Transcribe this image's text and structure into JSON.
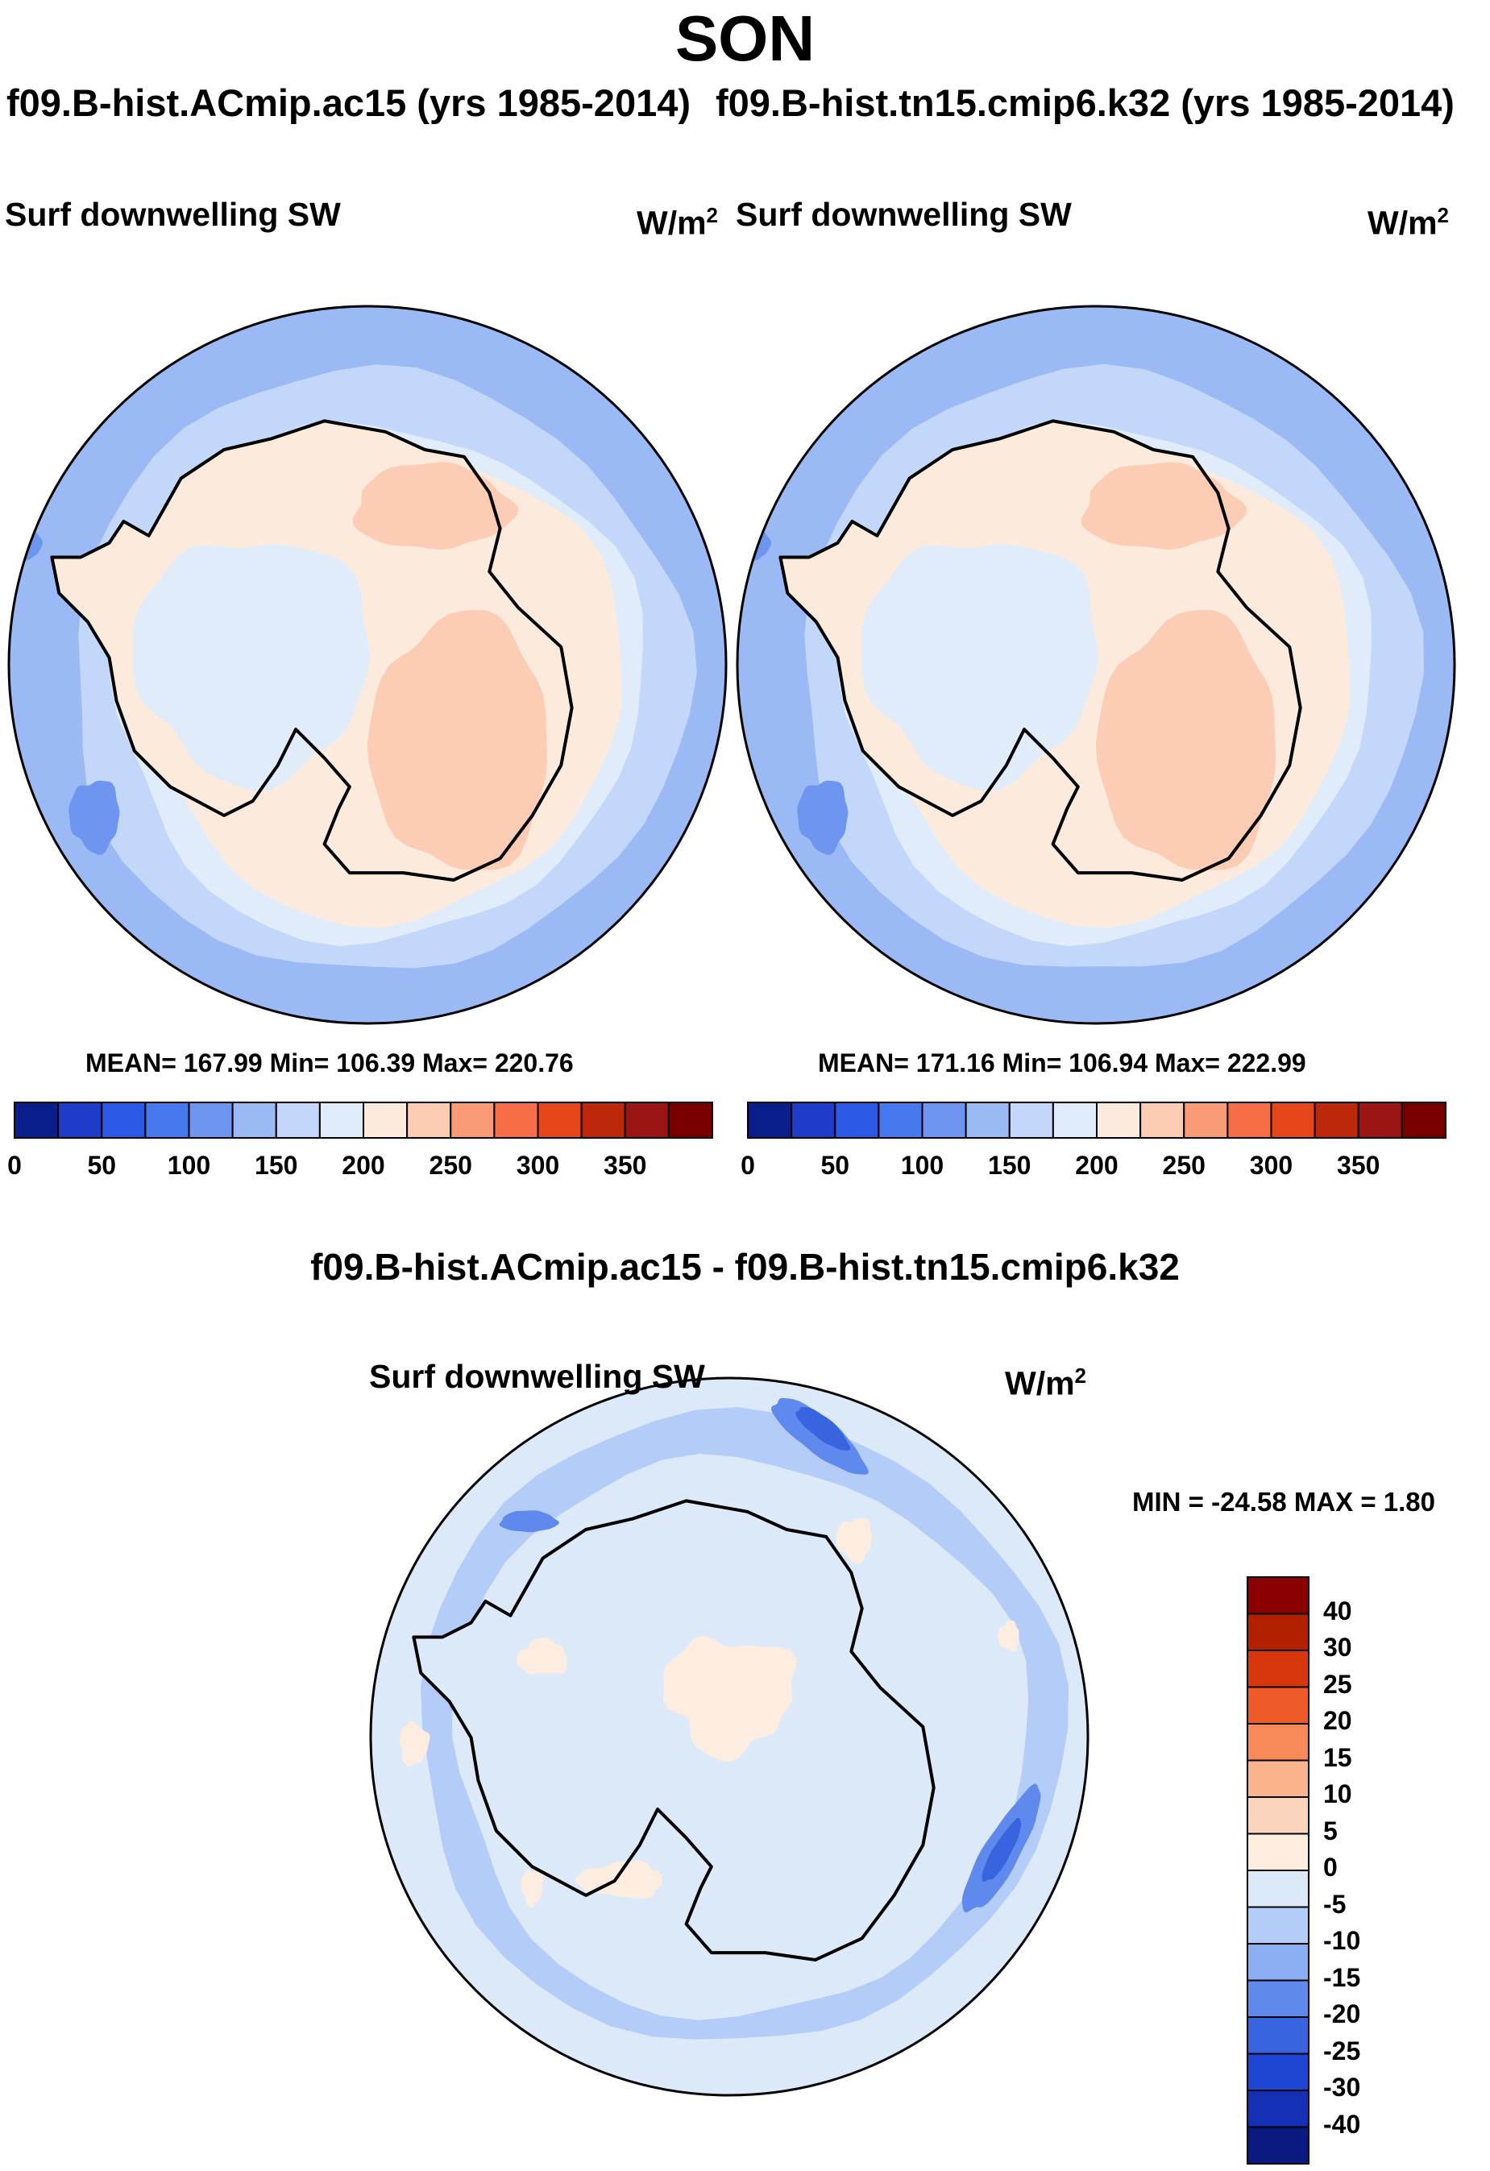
{
  "title": "SON",
  "panels": [
    {
      "case": "f09.B-hist.ACmip.ac15 (yrs 1985-2014)",
      "variable": "Surf downwelling SW",
      "units_base": "W/m",
      "units_exp": "2",
      "stats": "MEAN= 167.99  Min= 106.39  Max= 220.76"
    },
    {
      "case": "f09.B-hist.tn15.cmip6.k32 (yrs 1985-2014)",
      "variable": "Surf downwelling SW",
      "units_base": "W/m",
      "units_exp": "2",
      "stats": "MEAN= 171.16  Min= 106.94  Max= 222.99"
    }
  ],
  "diff": {
    "title": "f09.B-hist.ACmip.ac15 - f09.B-hist.tn15.cmip6.k32",
    "variable": "Surf downwelling SW",
    "units_base": "W/m",
    "units_exp": "2",
    "minmax": "MIN = -24.58 MAX =   1.80"
  },
  "chart_data": [
    {
      "type": "heatmap",
      "projection": "south polar stereographic",
      "title": "f09.B-hist.ACmip.ac15 (yrs 1985-2014)",
      "variable": "Surf downwelling SW",
      "units": "W/m2",
      "season": "SON",
      "mean": 167.99,
      "min": 106.39,
      "max": 220.76,
      "colorbar": {
        "orientation": "horizontal",
        "ticks": [
          "0",
          "50",
          "100",
          "150",
          "200",
          "250",
          "300",
          "350"
        ],
        "colors": [
          "#0a1e8c",
          "#1e3cc8",
          "#2a5ae6",
          "#4678f0",
          "#6e96f0",
          "#9bb9f5",
          "#c3d7fa",
          "#e1ecfa",
          "#fcebdc",
          "#fccdb4",
          "#fa9b78",
          "#f56e46",
          "#e64619",
          "#be280a",
          "#9b1414",
          "#780000"
        ]
      }
    },
    {
      "type": "heatmap",
      "projection": "south polar stereographic",
      "title": "f09.B-hist.tn15.cmip6.k32 (yrs 1985-2014)",
      "variable": "Surf downwelling SW",
      "units": "W/m2",
      "season": "SON",
      "mean": 171.16,
      "min": 106.94,
      "max": 222.99,
      "colorbar": {
        "orientation": "horizontal",
        "ticks": [
          "0",
          "50",
          "100",
          "150",
          "200",
          "250",
          "300",
          "350"
        ],
        "colors": [
          "#0a1e8c",
          "#1e3cc8",
          "#2a5ae6",
          "#4678f0",
          "#6e96f0",
          "#9bb9f5",
          "#c3d7fa",
          "#e1ecfa",
          "#fcebdc",
          "#fccdb4",
          "#fa9b78",
          "#f56e46",
          "#e64619",
          "#be280a",
          "#9b1414",
          "#780000"
        ]
      }
    },
    {
      "type": "heatmap",
      "projection": "south polar stereographic",
      "title": "f09.B-hist.ACmip.ac15 - f09.B-hist.tn15.cmip6.k32",
      "variable": "Surf downwelling SW",
      "units": "W/m2",
      "min": -24.58,
      "max": 1.8,
      "colorbar": {
        "orientation": "vertical",
        "ticks": [
          "40",
          "30",
          "25",
          "20",
          "15",
          "10",
          "5",
          "0",
          "-5",
          "-10",
          "-15",
          "-20",
          "-25",
          "-30",
          "-40"
        ],
        "colors": [
          "#8b0000",
          "#b22000",
          "#d8370d",
          "#ee5a28",
          "#f88a5a",
          "#f9b48e",
          "#fad4bd",
          "#fcede0",
          "#dbe9f9",
          "#b4ccf8",
          "#8caef2",
          "#5f89ec",
          "#3864e0",
          "#1e46d2",
          "#1430b4",
          "#0a1a80"
        ]
      }
    }
  ]
}
